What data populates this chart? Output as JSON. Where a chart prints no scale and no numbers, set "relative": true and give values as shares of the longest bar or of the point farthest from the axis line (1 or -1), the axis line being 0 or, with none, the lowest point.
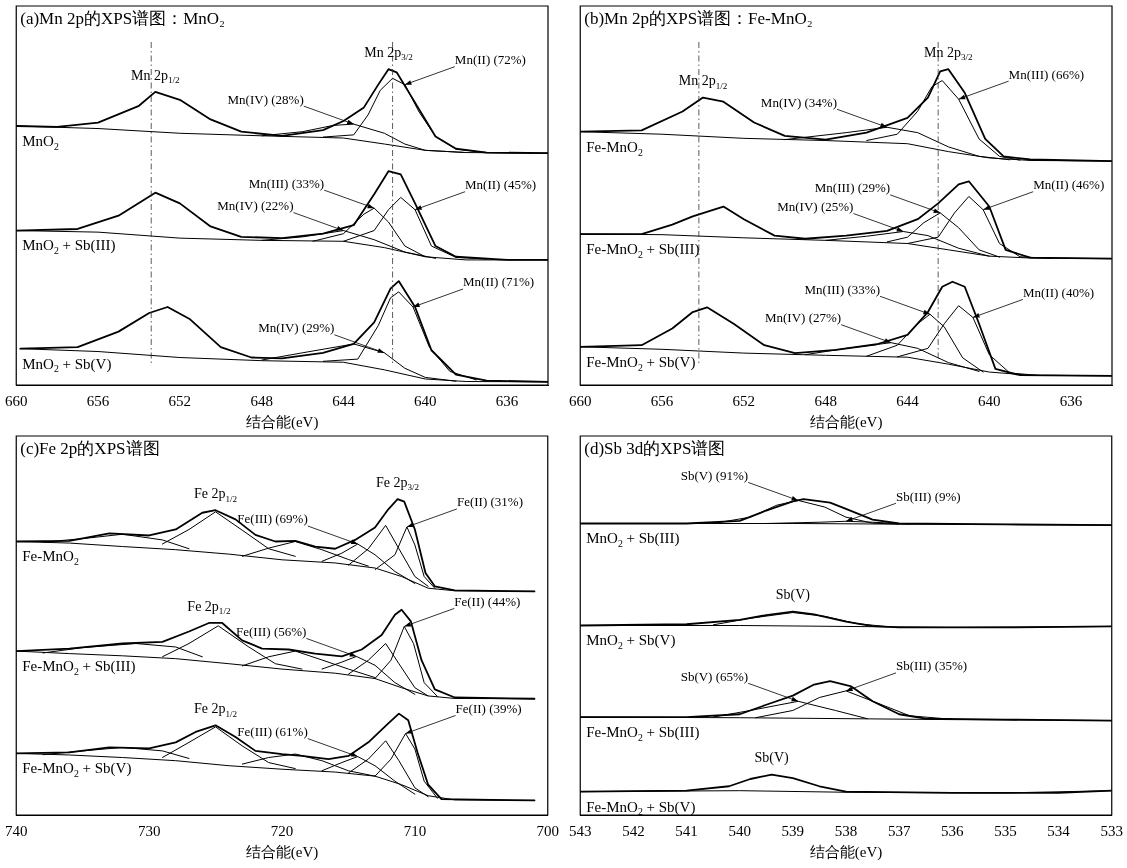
{
  "chart_data": [
    {
      "type": "line",
      "relative": true,
      "title": "(a)Mn 2p的XPS谱图：MnO₂",
      "xlabel": "结合能(eV)",
      "xlim": [
        660,
        634
      ],
      "xticks": [
        660,
        656,
        652,
        648,
        644,
        640,
        636
      ],
      "legend": false,
      "grid": false,
      "ref_lines": [
        {
          "axis": "x",
          "value": 653.4
        },
        {
          "axis": "x",
          "value": 641.6
        }
      ],
      "annotations": [
        {
          "text": "Mn 2p$_{1/2}$",
          "x": 653.2,
          "y": 0.928
        },
        {
          "text": "Mn 2p$_{3/2}$",
          "x": 641.8,
          "y": 1
        },
        {
          "text": "Mn(IV) (28%)",
          "x": 643.5,
          "y": 0.826
        },
        {
          "text": "Mn(II) (72%)",
          "x": 641,
          "y": 0.951
        },
        {
          "text": "Mn(III) (33%)",
          "x": 642.5,
          "y": 0.56
        },
        {
          "text": "Mn(IV) (22%)",
          "x": 644,
          "y": 0.489
        },
        {
          "text": "Mn(II) (45%)",
          "x": 640.5,
          "y": 0.555
        },
        {
          "text": "Mn(IV) (29%)",
          "x": 642,
          "y": 0.102
        },
        {
          "text": "Mn(II) (71%)",
          "x": 640.6,
          "y": 0.247
        }
      ],
      "series": [
        {
          "name": "MnO$_{2}$",
          "color": "#000000",
          "x": [
            660,
            658,
            656,
            654,
            653.2,
            652,
            650.5,
            649,
            647,
            645,
            644,
            643,
            642.3,
            641.8,
            641.4,
            640.5,
            639.5,
            638.5,
            637,
            634
          ],
          "values": [
            0.82,
            0.817,
            0.831,
            0.884,
            0.928,
            0.903,
            0.841,
            0.802,
            0.789,
            0.807,
            0.836,
            0.879,
            0.951,
            1,
            0.99,
            0.894,
            0.787,
            0.748,
            0.736,
            0.734
          ]
        },
        {
          "color": "#000000",
          "x": [
            660,
            656,
            652,
            648,
            644,
            642,
            640,
            638,
            634
          ],
          "values": [
            0.82,
            0.812,
            0.797,
            0.789,
            0.782,
            0.763,
            0.743,
            0.736,
            0.734
          ]
        },
        {
          "color": "#000000",
          "x": [
            648,
            646,
            644.5,
            643.5,
            642,
            641,
            640,
            638
          ],
          "values": [
            0.789,
            0.802,
            0.822,
            0.826,
            0.797,
            0.763,
            0.743,
            0.736
          ]
        },
        {
          "color": "#000000",
          "x": [
            645,
            643.5,
            642.8,
            642.2,
            641.6,
            641,
            640.3,
            639.5,
            638.5,
            637
          ],
          "values": [
            0.785,
            0.792,
            0.855,
            0.933,
            0.971,
            0.951,
            0.864,
            0.787,
            0.747,
            0.736
          ]
        },
        {
          "name": "MnO$_{2}$ + Sb(III)",
          "color": "#000000",
          "x": [
            660,
            657,
            655,
            653.2,
            652,
            650.5,
            649,
            647,
            645,
            643.5,
            642.5,
            641.8,
            641.2,
            640.5,
            639.5,
            638.5,
            636,
            634
          ],
          "values": [
            0.489,
            0.494,
            0.536,
            0.609,
            0.575,
            0.502,
            0.469,
            0.465,
            0.479,
            0.506,
            0.604,
            0.677,
            0.667,
            0.575,
            0.44,
            0.406,
            0.396,
            0.396
          ]
        },
        {
          "color": "#000000",
          "x": [
            660,
            656,
            652,
            648,
            644,
            642,
            640,
            638,
            634
          ],
          "values": [
            0.489,
            0.484,
            0.465,
            0.458,
            0.455,
            0.435,
            0.406,
            0.396,
            0.396
          ]
        },
        {
          "color": "#000000",
          "x": [
            648,
            646,
            644,
            642.5,
            641,
            639.5
          ],
          "values": [
            0.458,
            0.469,
            0.489,
            0.46,
            0.421,
            0.401
          ]
        },
        {
          "color": "#000000",
          "x": [
            645.5,
            644,
            643,
            642.5,
            641.8,
            641,
            640
          ],
          "values": [
            0.455,
            0.479,
            0.541,
            0.56,
            0.516,
            0.44,
            0.406
          ]
        },
        {
          "color": "#000000",
          "x": [
            644,
            642.5,
            641.8,
            641.2,
            640.5,
            639.7,
            638.5,
            637
          ],
          "values": [
            0.455,
            0.489,
            0.555,
            0.594,
            0.555,
            0.44,
            0.404,
            0.399
          ]
        },
        {
          "name": "MnO$_{2}$ + Sb(V)",
          "color": "#000000",
          "x": [
            659.8,
            657,
            655,
            653.5,
            652.6,
            651.5,
            650,
            648.5,
            647,
            645,
            643.5,
            642.5,
            641.7,
            641.3,
            640.5,
            639.7,
            638.5,
            637,
            634
          ],
          "values": [
            0.115,
            0.12,
            0.169,
            0.228,
            0.247,
            0.208,
            0.12,
            0.087,
            0.084,
            0.102,
            0.13,
            0.198,
            0.305,
            0.329,
            0.247,
            0.11,
            0.033,
            0.014,
            0.01
          ]
        },
        {
          "color": "#000000",
          "x": [
            659.8,
            656,
            652,
            648,
            644,
            642,
            640,
            638,
            634
          ],
          "values": [
            0.115,
            0.106,
            0.087,
            0.077,
            0.072,
            0.048,
            0.019,
            0.011,
            0.01
          ]
        },
        {
          "color": "#000000",
          "x": [
            648,
            646,
            643.5,
            642,
            641,
            640,
            638.5
          ],
          "values": [
            0.079,
            0.102,
            0.13,
            0.102,
            0.053,
            0.024,
            0.012
          ]
        },
        {
          "color": "#000000",
          "x": [
            645,
            643.3,
            642.3,
            641.7,
            641.3,
            640.6,
            639.8,
            638.8,
            637.5
          ],
          "values": [
            0.075,
            0.082,
            0.188,
            0.276,
            0.295,
            0.247,
            0.12,
            0.043,
            0.016
          ]
        }
      ]
    },
    {
      "type": "line",
      "relative": true,
      "title": "(b)Mn 2p的XPS谱图：Fe-MnO₂",
      "xlabel": "结合能(eV)",
      "xlim": [
        660,
        634
      ],
      "xticks": [
        660,
        656,
        652,
        648,
        644,
        640,
        636
      ],
      "legend": false,
      "grid": false,
      "ref_lines": [
        {
          "axis": "x",
          "value": 654.2
        },
        {
          "axis": "x",
          "value": 642.5
        }
      ],
      "annotations": [
        {
          "text": "Mn 2p$_{1/2}$",
          "x": 654,
          "y": 0.91
        },
        {
          "text": "Mn 2p$_{3/2}$",
          "x": 642,
          "y": 1
        },
        {
          "text": "Mn(IV) (34%)",
          "x": 645,
          "y": 0.816
        },
        {
          "text": "Mn(III) (66%)",
          "x": 641.5,
          "y": 0.905
        },
        {
          "text": "Mn(III) (29%)",
          "x": 642.4,
          "y": 0.545
        },
        {
          "text": "Mn(IV) (25%)",
          "x": 644.2,
          "y": 0.486
        },
        {
          "text": "Mn(II) (46%)",
          "x": 640.3,
          "y": 0.555
        },
        {
          "text": "Mn(III) (33%)",
          "x": 642.9,
          "y": 0.224
        },
        {
          "text": "Mn(IV) (27%)",
          "x": 644.8,
          "y": 0.134
        },
        {
          "text": "Mn(II) (40%)",
          "x": 640.8,
          "y": 0.214
        }
      ],
      "series": [
        {
          "name": "Fe-MnO$_{2}$",
          "color": "#000000",
          "x": [
            660,
            657,
            655,
            654,
            653,
            651.5,
            650,
            648,
            646,
            644,
            643,
            642.4,
            642,
            641.2,
            640.2,
            639.3,
            638,
            634
          ],
          "values": [
            0.802,
            0.806,
            0.866,
            0.91,
            0.897,
            0.831,
            0.789,
            0.777,
            0.799,
            0.846,
            0.91,
            0.993,
            1,
            0.925,
            0.779,
            0.724,
            0.714,
            0.709
          ]
        },
        {
          "color": "#000000",
          "x": [
            660,
            656,
            652,
            648,
            644,
            642,
            640,
            638,
            634
          ],
          "values": [
            0.802,
            0.794,
            0.781,
            0.774,
            0.764,
            0.739,
            0.719,
            0.711,
            0.709
          ]
        },
        {
          "color": "#000000",
          "x": [
            650,
            647,
            645,
            643.5,
            642,
            640.5,
            639
          ],
          "values": [
            0.777,
            0.799,
            0.816,
            0.799,
            0.754,
            0.724,
            0.713
          ]
        },
        {
          "color": "#000000",
          "x": [
            646,
            644.5,
            643.5,
            642.8,
            642.3,
            641.5,
            640.5,
            639.5,
            638.5
          ],
          "values": [
            0.774,
            0.794,
            0.867,
            0.945,
            0.964,
            0.905,
            0.779,
            0.724,
            0.712
          ]
        },
        {
          "name": "Fe-MnO$_{2}$ + Sb(III)",
          "color": "#000000",
          "x": [
            660,
            657,
            655.5,
            654.5,
            653,
            652,
            650.5,
            649,
            647,
            645,
            643.5,
            642.5,
            641.5,
            641,
            640,
            639.2,
            638,
            634
          ],
          "values": [
            0.478,
            0.478,
            0.508,
            0.534,
            0.565,
            0.525,
            0.473,
            0.463,
            0.473,
            0.488,
            0.525,
            0.575,
            0.635,
            0.645,
            0.565,
            0.428,
            0.403,
            0.4
          ]
        },
        {
          "color": "#000000",
          "x": [
            660,
            656,
            652,
            648,
            644,
            642,
            640,
            638,
            634
          ],
          "values": [
            0.478,
            0.476,
            0.466,
            0.458,
            0.448,
            0.428,
            0.408,
            0.402,
            0.4
          ]
        },
        {
          "color": "#000000",
          "x": [
            648,
            646,
            644.2,
            643,
            641.5,
            640
          ],
          "values": [
            0.458,
            0.471,
            0.486,
            0.473,
            0.433,
            0.408
          ]
        },
        {
          "color": "#000000",
          "x": [
            645,
            644,
            643.2,
            642.4,
            641.5,
            640.5,
            639.5
          ],
          "values": [
            0.453,
            0.468,
            0.514,
            0.545,
            0.498,
            0.428,
            0.405
          ]
        },
        {
          "color": "#000000",
          "x": [
            644,
            642.5,
            641.7,
            641,
            640.3,
            639.5,
            638.5,
            637
          ],
          "values": [
            0.448,
            0.468,
            0.545,
            0.597,
            0.555,
            0.448,
            0.406,
            0.401
          ]
        },
        {
          "name": "Fe-MnO$_{2}$ + Sb(V)",
          "color": "#000000",
          "x": [
            660,
            657,
            655.5,
            654.5,
            653.8,
            652.5,
            651,
            649.5,
            647.5,
            645.5,
            644,
            643,
            642.3,
            641.8,
            641.2,
            640.5,
            639.7,
            638.5,
            634
          ],
          "values": [
            0.121,
            0.126,
            0.179,
            0.231,
            0.246,
            0.194,
            0.126,
            0.101,
            0.111,
            0.129,
            0.159,
            0.231,
            0.311,
            0.327,
            0.311,
            0.194,
            0.051,
            0.031,
            0.029
          ]
        },
        {
          "color": "#000000",
          "x": [
            660,
            656,
            652,
            648,
            644,
            642,
            640,
            638,
            634
          ],
          "values": [
            0.121,
            0.113,
            0.101,
            0.094,
            0.088,
            0.066,
            0.041,
            0.031,
            0.029
          ]
        },
        {
          "color": "#000000",
          "x": [
            649,
            647,
            644.8,
            643.5,
            642,
            640.5
          ],
          "values": [
            0.096,
            0.116,
            0.134,
            0.116,
            0.071,
            0.043
          ]
        },
        {
          "color": "#000000",
          "x": [
            646,
            644.5,
            643.5,
            642.9,
            642.2,
            641.3,
            640.3
          ],
          "values": [
            0.091,
            0.126,
            0.194,
            0.224,
            0.184,
            0.086,
            0.041
          ]
        },
        {
          "color": "#000000",
          "x": [
            644.5,
            643,
            642.2,
            641.5,
            640.8,
            640,
            639,
            637.5
          ],
          "values": [
            0.089,
            0.116,
            0.194,
            0.251,
            0.214,
            0.096,
            0.038,
            0.03
          ]
        }
      ]
    },
    {
      "type": "line",
      "relative": true,
      "title": "(c)Fe 2p的XPS谱图",
      "xlabel": "结合能(eV)",
      "xlim": [
        740,
        700
      ],
      "xticks": [
        740,
        730,
        720,
        710,
        700
      ],
      "legend": false,
      "grid": false,
      "annotations": [
        {
          "text": "Fe 2p$_{1/2}$",
          "x": 725,
          "y": 0.965
        },
        {
          "text": "Fe 2p$_{3/2}$",
          "x": 711.3,
          "y": 1
        },
        {
          "text": "Fe(III) (69%)",
          "x": 714.3,
          "y": 0.858
        },
        {
          "text": "Fe(II) (31%)",
          "x": 710.6,
          "y": 0.912
        },
        {
          "text": "Fe 2p$_{1/2}$",
          "x": 725.5,
          "y": 0.608
        },
        {
          "text": "Fe(III) (56%)",
          "x": 714.4,
          "y": 0.502
        },
        {
          "text": "Fe(II) (44%)",
          "x": 710.8,
          "y": 0.597
        },
        {
          "text": "Fe 2p$_{1/2}$",
          "x": 725,
          "y": 0.284
        },
        {
          "text": "Fe(III) (61%)",
          "x": 714.3,
          "y": 0.185
        },
        {
          "text": "Fe(II) (39%)",
          "x": 710.7,
          "y": 0.258
        }
      ],
      "series": [
        {
          "name": "Fe-MnO$_{2}$",
          "color": "#000000",
          "x": [
            740,
            736,
            733,
            730,
            728,
            726,
            725,
            723.5,
            722,
            720.5,
            719,
            717.5,
            716,
            714.5,
            713,
            712,
            711.3,
            710.8,
            710,
            709.2,
            708.5,
            707,
            701
          ],
          "values": [
            0.866,
            0.868,
            0.892,
            0.885,
            0.904,
            0.957,
            0.965,
            0.936,
            0.887,
            0.866,
            0.868,
            0.85,
            0.843,
            0.871,
            0.91,
            0.968,
            1,
            0.992,
            0.904,
            0.766,
            0.724,
            0.711,
            0.708
          ]
        },
        {
          "color": "#000000",
          "x": [
            740,
            736,
            732,
            728,
            724,
            720,
            716,
            713,
            711,
            709,
            707,
            701
          ],
          "values": [
            0.866,
            0.861,
            0.85,
            0.84,
            0.826,
            0.808,
            0.798,
            0.782,
            0.755,
            0.718,
            0.71,
            0.708
          ]
        },
        {
          "color": "#000000",
          "x": [
            738,
            735,
            732,
            729,
            727
          ],
          "values": [
            0.864,
            0.875,
            0.889,
            0.871,
            0.843
          ]
        },
        {
          "color": "#000000",
          "x": [
            729,
            727,
            725,
            723,
            721,
            719
          ],
          "values": [
            0.858,
            0.904,
            0.96,
            0.902,
            0.843,
            0.819
          ]
        },
        {
          "color": "#000000",
          "x": [
            723,
            721,
            719,
            717,
            715,
            713.5
          ],
          "values": [
            0.819,
            0.845,
            0.866,
            0.84,
            0.809,
            0.788
          ]
        },
        {
          "color": "#000000",
          "x": [
            717,
            715.5,
            714.3,
            713,
            711.5,
            710
          ],
          "values": [
            0.803,
            0.829,
            0.858,
            0.824,
            0.771,
            0.733
          ]
        },
        {
          "color": "#000000",
          "x": [
            715,
            713.5,
            712.2,
            711.2,
            710,
            709
          ],
          "values": [
            0.791,
            0.843,
            0.917,
            0.843,
            0.755,
            0.724
          ]
        },
        {
          "color": "#000000",
          "x": [
            713,
            711.5,
            710.6,
            710,
            709.3,
            708.5
          ],
          "values": [
            0.777,
            0.824,
            0.912,
            0.855,
            0.755,
            0.718
          ]
        },
        {
          "name": "Fe-MnO$_{2}$ + Sb(III)",
          "color": "#000000",
          "x": [
            740,
            736,
            732,
            729,
            727,
            725.5,
            724.5,
            723,
            721.5,
            719.5,
            717.5,
            715.5,
            714,
            712.5,
            711.5,
            711,
            710.3,
            709.5,
            708.5,
            707,
            701
          ],
          "values": [
            0.519,
            0.527,
            0.543,
            0.548,
            0.581,
            0.608,
            0.608,
            0.553,
            0.527,
            0.524,
            0.511,
            0.502,
            0.524,
            0.57,
            0.634,
            0.65,
            0.613,
            0.49,
            0.398,
            0.372,
            0.368
          ]
        },
        {
          "color": "#000000",
          "x": [
            740,
            736,
            732,
            728,
            724,
            720,
            716,
            713,
            711,
            709,
            707,
            701
          ],
          "values": [
            0.519,
            0.511,
            0.504,
            0.495,
            0.479,
            0.462,
            0.449,
            0.432,
            0.403,
            0.377,
            0.369,
            0.368
          ]
        },
        {
          "color": "#000000",
          "x": [
            738,
            735,
            731,
            728,
            726
          ],
          "values": [
            0.513,
            0.53,
            0.543,
            0.532,
            0.501
          ]
        },
        {
          "color": "#000000",
          "x": [
            729,
            727,
            724.8,
            722.5,
            720.5,
            718.5
          ],
          "values": [
            0.501,
            0.543,
            0.599,
            0.532,
            0.479,
            0.462
          ]
        },
        {
          "color": "#000000",
          "x": [
            723,
            721,
            719,
            717,
            715,
            713
          ],
          "values": [
            0.472,
            0.501,
            0.519,
            0.491,
            0.462,
            0.435
          ]
        },
        {
          "color": "#000000",
          "x": [
            717,
            715.5,
            714.4,
            713,
            711.5,
            710
          ],
          "values": [
            0.462,
            0.484,
            0.502,
            0.474,
            0.419,
            0.382
          ]
        },
        {
          "color": "#000000",
          "x": [
            715,
            713.5,
            712.2,
            711.2,
            710,
            709
          ],
          "values": [
            0.446,
            0.49,
            0.543,
            0.479,
            0.403,
            0.377
          ]
        },
        {
          "color": "#000000",
          "x": [
            713,
            711.8,
            710.8,
            710.1,
            709.3,
            708.3
          ],
          "values": [
            0.432,
            0.49,
            0.597,
            0.543,
            0.419,
            0.375
          ]
        },
        {
          "name": "Fe-MnO$_{2}$ + Sb(V)",
          "color": "#000000",
          "x": [
            740,
            736,
            733,
            730,
            728,
            726.5,
            725,
            723.5,
            722,
            720,
            718.5,
            716.5,
            715,
            713.5,
            712,
            711.2,
            710.5,
            709.8,
            709,
            708,
            701
          ],
          "values": [
            0.195,
            0.198,
            0.214,
            0.211,
            0.23,
            0.263,
            0.284,
            0.247,
            0.203,
            0.193,
            0.187,
            0.177,
            0.187,
            0.23,
            0.29,
            0.321,
            0.3,
            0.198,
            0.096,
            0.05,
            0.046
          ]
        },
        {
          "color": "#000000",
          "x": [
            740,
            736,
            732,
            728,
            724,
            720,
            716,
            713,
            711,
            709,
            707,
            701
          ],
          "values": [
            0.195,
            0.19,
            0.182,
            0.172,
            0.156,
            0.145,
            0.136,
            0.123,
            0.096,
            0.061,
            0.048,
            0.046
          ]
        },
        {
          "color": "#000000",
          "x": [
            738,
            735,
            732,
            729,
            727
          ],
          "values": [
            0.191,
            0.203,
            0.214,
            0.203,
            0.179
          ]
        },
        {
          "color": "#000000",
          "x": [
            729,
            727,
            725,
            723,
            721,
            719
          ],
          "values": [
            0.182,
            0.23,
            0.279,
            0.219,
            0.166,
            0.147
          ]
        },
        {
          "color": "#000000",
          "x": [
            723,
            721,
            719,
            717,
            715,
            713
          ],
          "values": [
            0.161,
            0.182,
            0.193,
            0.172,
            0.14,
            0.123
          ]
        },
        {
          "color": "#000000",
          "x": [
            717,
            715.5,
            714.3,
            713,
            711.5,
            710
          ],
          "values": [
            0.14,
            0.166,
            0.185,
            0.156,
            0.107,
            0.066
          ]
        },
        {
          "color": "#000000",
          "x": [
            715,
            713.5,
            712.2,
            711.2,
            710,
            709
          ],
          "values": [
            0.133,
            0.177,
            0.235,
            0.172,
            0.086,
            0.058
          ]
        },
        {
          "color": "#000000",
          "x": [
            713,
            711.8,
            710.7,
            710,
            709.3,
            708.3
          ],
          "values": [
            0.123,
            0.177,
            0.258,
            0.209,
            0.107,
            0.053
          ]
        }
      ]
    },
    {
      "type": "line",
      "relative": true,
      "title": "(d)Sb 3d的XPS谱图",
      "xlabel": "结合能(eV)",
      "xlim": [
        543,
        533
      ],
      "xticks": [
        543,
        542,
        541,
        540,
        539,
        538,
        537,
        536,
        535,
        534,
        533
      ],
      "legend": false,
      "grid": false,
      "annotations": [
        {
          "text": "Sb(V) (91%)",
          "x": 538.9,
          "y": 0.996
        },
        {
          "text": "Sb(III) (9%)",
          "x": 538,
          "y": 0.93
        },
        {
          "text": "Sb(V)",
          "x": 539,
          "y": 0.644
        },
        {
          "text": "Sb(V) (65%)",
          "x": 538.9,
          "y": 0.36
        },
        {
          "text": "Sb(III) (35%)",
          "x": 538,
          "y": 0.393
        },
        {
          "text": "Sb(V)",
          "x": 539.4,
          "y": 0.128
        }
      ],
      "series": [
        {
          "name": "MnO$_{2}$ + Sb(III)",
          "color": "#000000",
          "x": [
            543,
            541,
            540,
            539.5,
            539,
            538.8,
            538.3,
            538,
            537.5,
            537,
            535,
            533
          ],
          "values": [
            0.923,
            0.923,
            0.931,
            0.964,
            0.993,
            1,
            0.989,
            0.969,
            0.935,
            0.923,
            0.92,
            0.918
          ]
        },
        {
          "color": "#000000",
          "x": [
            543,
            539,
            537,
            535,
            533
          ],
          "values": [
            0.923,
            0.923,
            0.921,
            0.92,
            0.918
          ]
        },
        {
          "color": "#000000",
          "x": [
            540.5,
            539.8,
            539.3,
            538.9,
            538.4,
            538,
            537.5,
            537
          ],
          "values": [
            0.923,
            0.943,
            0.981,
            0.996,
            0.975,
            0.943,
            0.924,
            0.921
          ]
        },
        {
          "color": "#000000",
          "x": [
            539.5,
            538.5,
            538,
            537.5,
            536.8
          ],
          "values": [
            0.923,
            0.927,
            0.93,
            0.927,
            0.921
          ]
        },
        {
          "name": "MnO$_{2}$ + Sb(V)",
          "color": "#000000",
          "x": [
            543,
            541,
            540,
            539.5,
            539,
            538.6,
            538,
            537.5,
            537,
            535,
            533
          ],
          "values": [
            0.6,
            0.604,
            0.618,
            0.633,
            0.644,
            0.635,
            0.612,
            0.598,
            0.594,
            0.594,
            0.597
          ]
        },
        {
          "color": "#000000",
          "x": [
            543,
            540,
            538,
            536,
            533
          ],
          "values": [
            0.6,
            0.6,
            0.597,
            0.594,
            0.597
          ]
        },
        {
          "color": "#000000",
          "x": [
            540.5,
            539.8,
            539,
            538.4,
            537.8,
            537.2
          ],
          "values": [
            0.602,
            0.623,
            0.641,
            0.629,
            0.606,
            0.596
          ]
        },
        {
          "name": "Fe-MnO$_{2}$ + Sb(III)",
          "color": "#000000",
          "x": [
            543,
            541,
            540,
            539.5,
            539,
            538.6,
            538.3,
            537.9,
            537.5,
            537,
            536.5,
            535,
            533
          ],
          "values": [
            0.31,
            0.31,
            0.319,
            0.349,
            0.378,
            0.413,
            0.424,
            0.407,
            0.36,
            0.319,
            0.305,
            0.302,
            0.299
          ]
        },
        {
          "color": "#000000",
          "x": [
            543,
            540,
            538,
            536,
            533
          ],
          "values": [
            0.31,
            0.308,
            0.305,
            0.302,
            0.299
          ]
        },
        {
          "color": "#000000",
          "x": [
            540.5,
            539.8,
            538.9,
            538.2,
            537.6
          ],
          "values": [
            0.31,
            0.331,
            0.36,
            0.331,
            0.305
          ]
        },
        {
          "color": "#000000",
          "x": [
            539.7,
            539,
            538.5,
            538,
            537.4,
            536.8,
            536
          ],
          "values": [
            0.308,
            0.331,
            0.372,
            0.393,
            0.354,
            0.314,
            0.303
          ]
        },
        {
          "name": "Fe-MnO$_{2}$ + Sb(V)",
          "color": "#000000",
          "x": [
            543,
            541,
            540.2,
            539.8,
            539.4,
            539,
            538.5,
            538,
            536,
            534,
            533
          ],
          "values": [
            0.074,
            0.077,
            0.091,
            0.114,
            0.128,
            0.117,
            0.091,
            0.074,
            0.07,
            0.07,
            0.077
          ]
        },
        {
          "color": "#000000",
          "x": [
            543,
            540,
            538,
            535,
            533
          ],
          "values": [
            0.074,
            0.077,
            0.072,
            0.07,
            0.077
          ]
        }
      ]
    }
  ]
}
